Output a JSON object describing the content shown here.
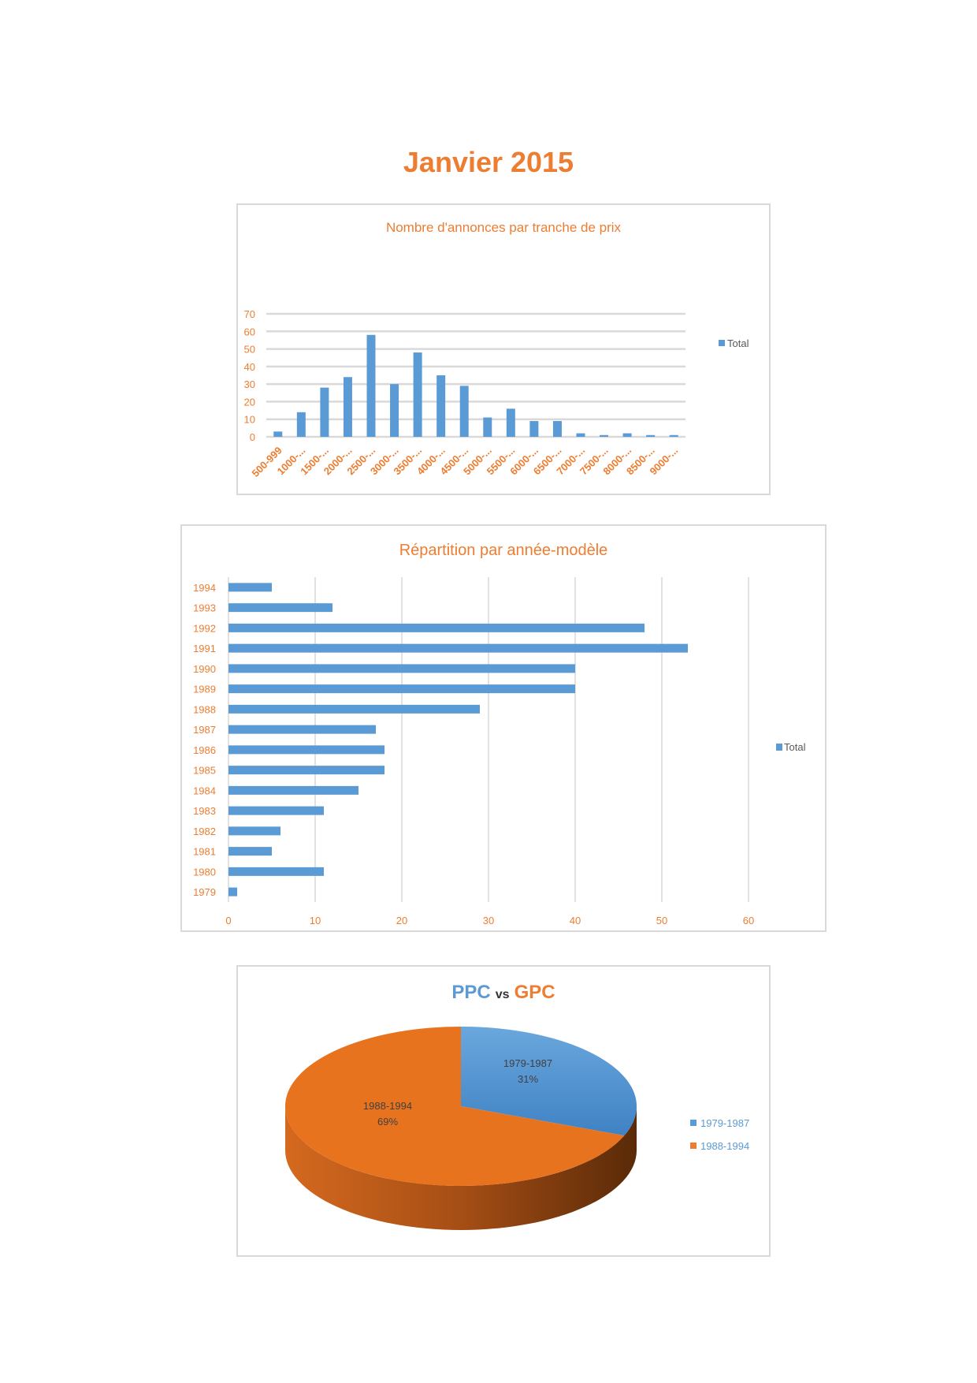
{
  "page": {
    "title": "Janvier 2015"
  },
  "colors": {
    "blue": "#5b9bd5",
    "orange": "#ed7d31",
    "grid": "#d9d9d9"
  },
  "chart_data": [
    {
      "type": "bar",
      "title": "Nombre d'annonces par tranche de prix",
      "legend": [
        "Total"
      ],
      "legend_position": "right",
      "ylim": [
        0,
        70
      ],
      "yticks": [
        0,
        10,
        20,
        30,
        40,
        50,
        60,
        70
      ],
      "grid": true,
      "categories": [
        "500-999",
        "1000-...",
        "1500-...",
        "2000-...",
        "2500-...",
        "3000-...",
        "3500-...",
        "4000-...",
        "4500-...",
        "5000-...",
        "5500-...",
        "6000-...",
        "6500-...",
        "7000-...",
        "7500-...",
        "8000-...",
        "8500-...",
        "9000-..."
      ],
      "series": [
        {
          "name": "Total",
          "values": [
            3,
            14,
            28,
            34,
            58,
            30,
            48,
            35,
            29,
            11,
            16,
            9,
            9,
            2,
            1,
            2,
            1,
            1
          ]
        }
      ]
    },
    {
      "type": "bar",
      "orientation": "horizontal",
      "title": "Répartition par année-modèle",
      "legend": [
        "Total"
      ],
      "legend_position": "right",
      "xlim": [
        0,
        60
      ],
      "xticks": [
        0,
        10,
        20,
        30,
        40,
        50,
        60
      ],
      "grid": true,
      "categories": [
        "1994",
        "1993",
        "1992",
        "1991",
        "1990",
        "1989",
        "1988",
        "1987",
        "1986",
        "1985",
        "1984",
        "1983",
        "1982",
        "1981",
        "1980",
        "1979"
      ],
      "series": [
        {
          "name": "Total",
          "values": [
            5,
            12,
            48,
            53,
            40,
            40,
            29,
            17,
            18,
            18,
            15,
            11,
            6,
            5,
            11,
            1
          ]
        }
      ]
    },
    {
      "type": "pie",
      "title_parts": [
        "PPC",
        "vs",
        "GPC"
      ],
      "legend_position": "right",
      "three_d": true,
      "labels": [
        "1979-1987",
        "1988-1994"
      ],
      "values": [
        31,
        69
      ],
      "value_labels": [
        "31%",
        "69%"
      ],
      "colors": [
        "#5b9bd5",
        "#ed7d31"
      ]
    }
  ]
}
